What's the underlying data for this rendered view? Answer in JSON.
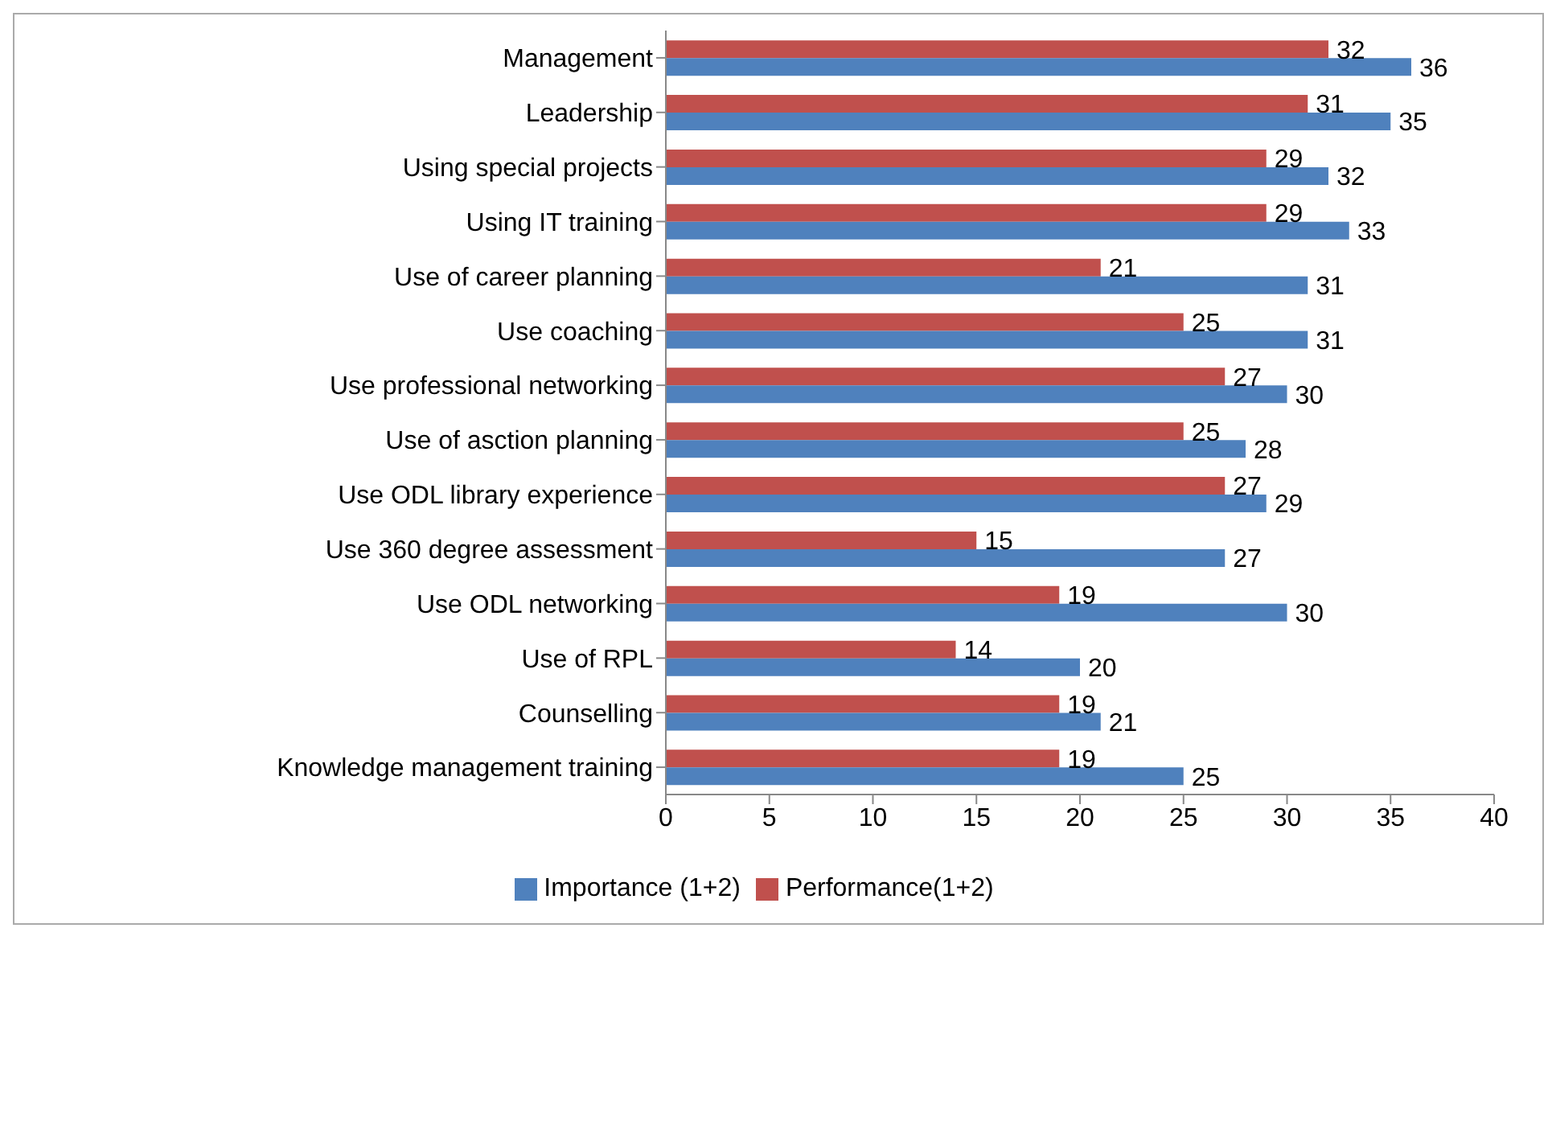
{
  "chart_data": {
    "type": "bar",
    "orientation": "horizontal",
    "categories": [
      "Management",
      "Leadership",
      "Using special projects",
      "Using IT training",
      "Use of career planning",
      "Use coaching",
      "Use professional networking",
      "Use of asction planning",
      "Use ODL library experience",
      "Use 360 degree assessment",
      "Use ODL networking",
      "Use of RPL",
      "Counselling",
      "Knowledge management training"
    ],
    "series": [
      {
        "name": "Performance(1+2)",
        "color": "#c0504d",
        "values": [
          32,
          31,
          29,
          29,
          21,
          25,
          27,
          25,
          27,
          15,
          19,
          14,
          19,
          19
        ]
      },
      {
        "name": "Importance (1+2)",
        "color": "#4f81bd",
        "values": [
          36,
          35,
          32,
          33,
          31,
          31,
          30,
          28,
          29,
          27,
          30,
          20,
          21,
          25
        ]
      }
    ],
    "xlim": [
      0,
      40
    ],
    "xticks": [
      0,
      5,
      10,
      15,
      20,
      25,
      30,
      35,
      40
    ],
    "data_labels": true,
    "legend": "bottom"
  }
}
